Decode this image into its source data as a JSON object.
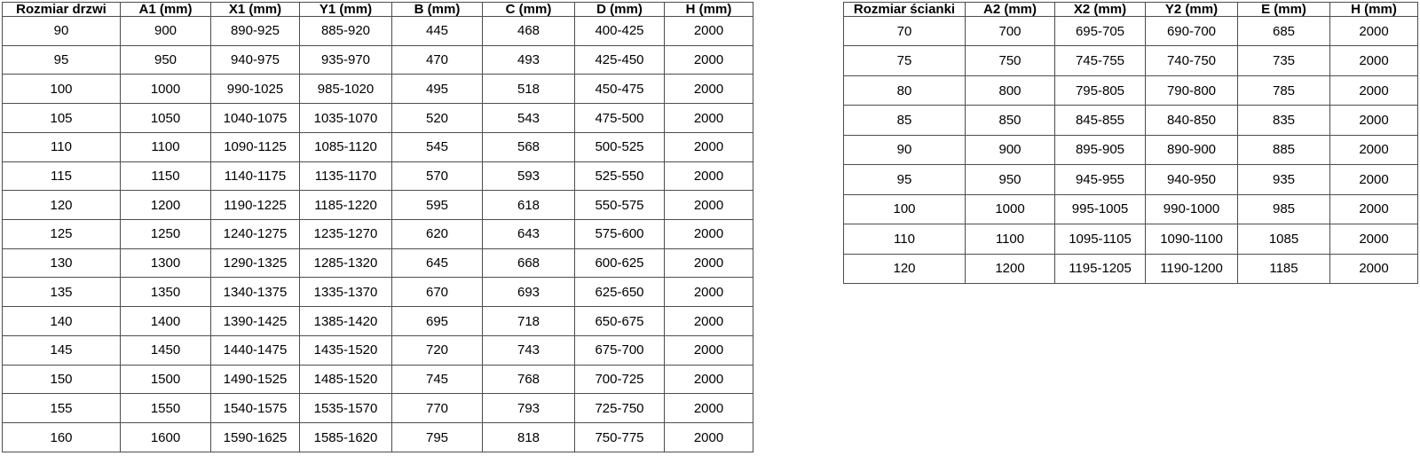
{
  "page": {
    "background": "#ffffff"
  },
  "colors": {
    "table_border": "#4d4d4d",
    "text": "#000000",
    "cell_background": "#ffffff"
  },
  "tables": [
    {
      "name": "door-size-table",
      "headers": [
        "Rozmiar drzwi",
        "A1 (mm)",
        "X1 (mm)",
        "Y1 (mm)",
        "B (mm)",
        "C (mm)",
        "D (mm)",
        "H (mm)"
      ],
      "rows": [
        [
          "90",
          "900",
          "890-925",
          "885-920",
          "445",
          "468",
          "400-425",
          "2000"
        ],
        [
          "95",
          "950",
          "940-975",
          "935-970",
          "470",
          "493",
          "425-450",
          "2000"
        ],
        [
          "100",
          "1000",
          "990-1025",
          "985-1020",
          "495",
          "518",
          "450-475",
          "2000"
        ],
        [
          "105",
          "1050",
          "1040-1075",
          "1035-1070",
          "520",
          "543",
          "475-500",
          "2000"
        ],
        [
          "110",
          "1100",
          "1090-1125",
          "1085-1120",
          "545",
          "568",
          "500-525",
          "2000"
        ],
        [
          "115",
          "1150",
          "1140-1175",
          "1135-1170",
          "570",
          "593",
          "525-550",
          "2000"
        ],
        [
          "120",
          "1200",
          "1190-1225",
          "1185-1220",
          "595",
          "618",
          "550-575",
          "2000"
        ],
        [
          "125",
          "1250",
          "1240-1275",
          "1235-1270",
          "620",
          "643",
          "575-600",
          "2000"
        ],
        [
          "130",
          "1300",
          "1290-1325",
          "1285-1320",
          "645",
          "668",
          "600-625",
          "2000"
        ],
        [
          "135",
          "1350",
          "1340-1375",
          "1335-1370",
          "670",
          "693",
          "625-650",
          "2000"
        ],
        [
          "140",
          "1400",
          "1390-1425",
          "1385-1420",
          "695",
          "718",
          "650-675",
          "2000"
        ],
        [
          "145",
          "1450",
          "1440-1475",
          "1435-1520",
          "720",
          "743",
          "675-700",
          "2000"
        ],
        [
          "150",
          "1500",
          "1490-1525",
          "1485-1520",
          "745",
          "768",
          "700-725",
          "2000"
        ],
        [
          "155",
          "1550",
          "1540-1575",
          "1535-1570",
          "770",
          "793",
          "725-750",
          "2000"
        ],
        [
          "160",
          "1600",
          "1590-1625",
          "1585-1620",
          "795",
          "818",
          "750-775",
          "2000"
        ]
      ]
    },
    {
      "name": "wall-size-table",
      "headers": [
        "Rozmiar ścianki",
        "A2 (mm)",
        "X2 (mm)",
        "Y2 (mm)",
        "E (mm)",
        "H (mm)"
      ],
      "rows": [
        [
          "70",
          "700",
          "695-705",
          "690-700",
          "685",
          "2000"
        ],
        [
          "75",
          "750",
          "745-755",
          "740-750",
          "735",
          "2000"
        ],
        [
          "80",
          "800",
          "795-805",
          "790-800",
          "785",
          "2000"
        ],
        [
          "85",
          "850",
          "845-855",
          "840-850",
          "835",
          "2000"
        ],
        [
          "90",
          "900",
          "895-905",
          "890-900",
          "885",
          "2000"
        ],
        [
          "95",
          "950",
          "945-955",
          "940-950",
          "935",
          "2000"
        ],
        [
          "100",
          "1000",
          "995-1005",
          "990-1000",
          "985",
          "2000"
        ],
        [
          "110",
          "1100",
          "1095-1105",
          "1090-1100",
          "1085",
          "2000"
        ],
        [
          "120",
          "1200",
          "1195-1205",
          "1190-1200",
          "1185",
          "2000"
        ]
      ]
    }
  ]
}
